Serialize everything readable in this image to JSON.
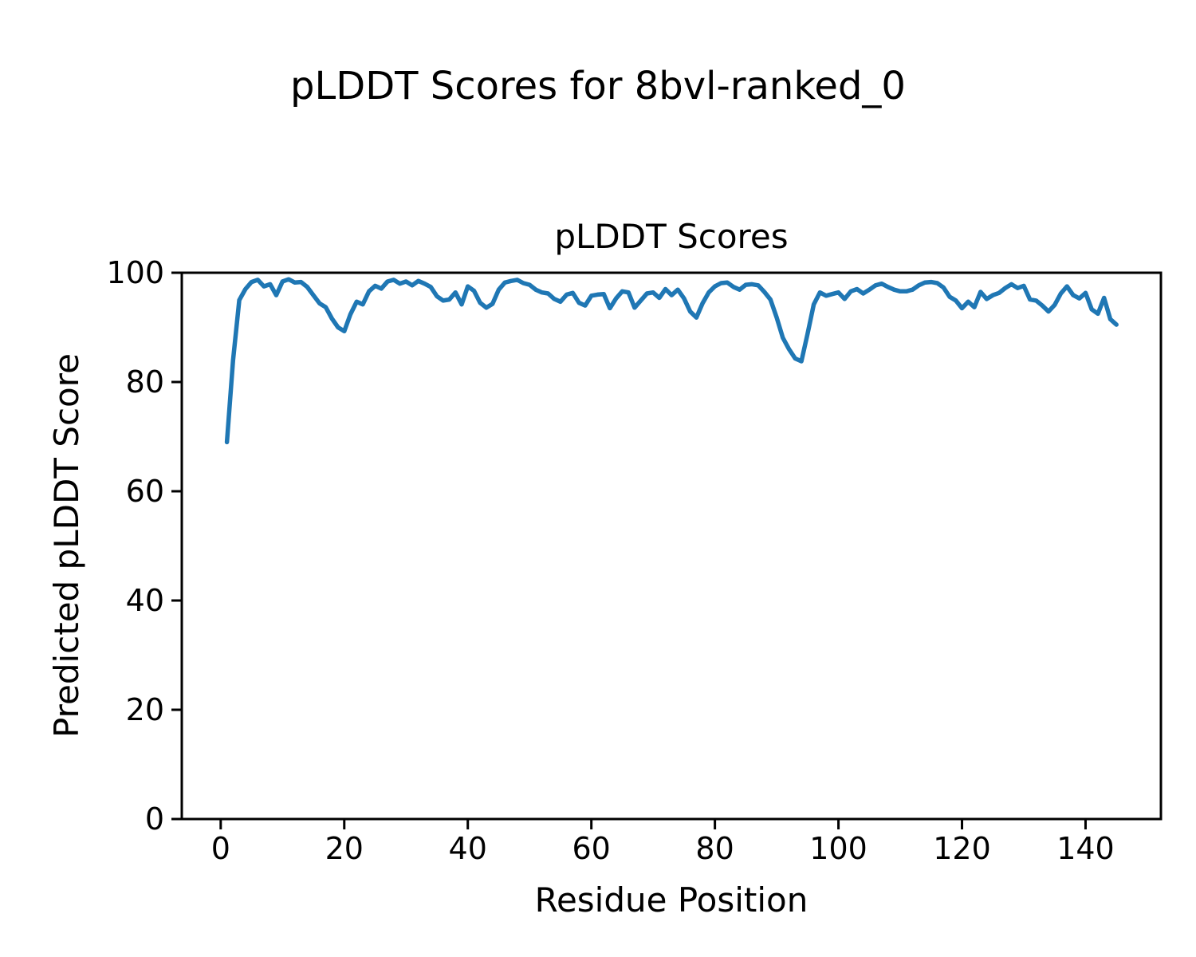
{
  "figure": {
    "suptitle": "pLDDT Scores for 8bvl-ranked_0",
    "background_color": "#ffffff",
    "text_color": "#000000"
  },
  "chart_data": {
    "type": "line",
    "title": "pLDDT Scores",
    "xlabel": "Residue Position",
    "ylabel": "Predicted pLDDT Score",
    "x_ticks": [
      0,
      20,
      40,
      60,
      80,
      100,
      120,
      140
    ],
    "y_ticks": [
      0,
      20,
      40,
      60,
      80,
      100
    ],
    "xlim": [
      -6.3,
      152.2
    ],
    "ylim": [
      0,
      100
    ],
    "grid": false,
    "legend": "none",
    "line_color": "#1f77b4",
    "line_width": 5.5,
    "series": [
      {
        "name": "pLDDT",
        "x_start": 1,
        "x_step": 1,
        "values": [
          69.0,
          84.0,
          95.0,
          97.0,
          98.3,
          98.7,
          97.5,
          97.9,
          95.9,
          98.4,
          98.8,
          98.2,
          98.3,
          97.4,
          95.9,
          94.4,
          93.7,
          91.6,
          90.0,
          89.3,
          92.4,
          94.7,
          94.2,
          96.6,
          97.6,
          97.1,
          98.4,
          98.7,
          98.0,
          98.4,
          97.7,
          98.5,
          98.0,
          97.4,
          95.7,
          94.9,
          95.1,
          96.4,
          94.2,
          97.5,
          96.7,
          94.5,
          93.6,
          94.3,
          96.9,
          98.2,
          98.5,
          98.7,
          98.1,
          97.8,
          96.9,
          96.4,
          96.2,
          95.2,
          94.7,
          96.0,
          96.3,
          94.5,
          94.0,
          95.8,
          96.0,
          96.1,
          93.5,
          95.3,
          96.6,
          96.4,
          93.6,
          94.9,
          96.2,
          96.4,
          95.4,
          97.0,
          95.9,
          96.9,
          95.3,
          92.9,
          91.8,
          94.4,
          96.4,
          97.5,
          98.1,
          98.2,
          97.4,
          96.9,
          97.8,
          97.9,
          97.7,
          96.5,
          95.1,
          91.8,
          88.1,
          86.0,
          84.3,
          83.8,
          88.8,
          94.2,
          96.4,
          95.8,
          96.1,
          96.4,
          95.2,
          96.6,
          97.0,
          96.2,
          96.9,
          97.7,
          98.0,
          97.4,
          96.9,
          96.6,
          96.6,
          96.9,
          97.7,
          98.2,
          98.3,
          98.1,
          97.3,
          95.6,
          94.9,
          93.5,
          94.7,
          93.7,
          96.5,
          95.2,
          95.9,
          96.3,
          97.2,
          97.9,
          97.2,
          97.6,
          95.1,
          94.9,
          94.0,
          92.9,
          94.1,
          96.2,
          97.5,
          95.9,
          95.3,
          96.3,
          93.3,
          92.5,
          95.4,
          91.5,
          90.5
        ]
      }
    ]
  }
}
